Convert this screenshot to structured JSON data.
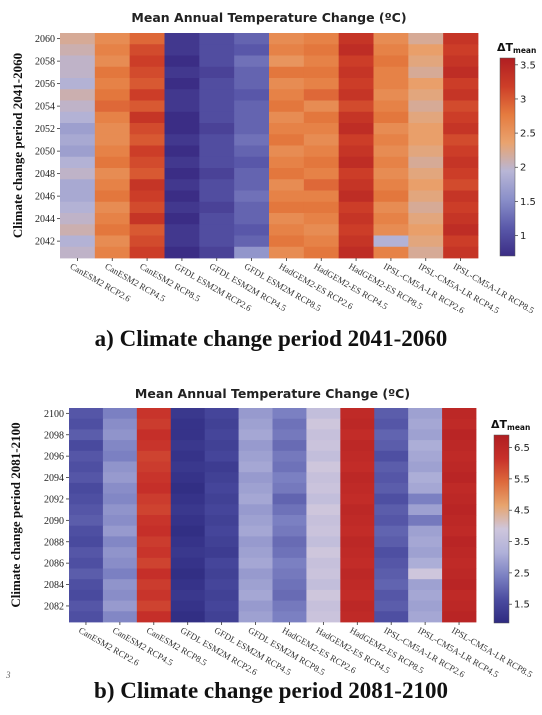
{
  "page": {
    "caption_a": "a) Climate change period 2041-2060",
    "caption_b": "b) Climate change period 2081-2100",
    "page_mark": "3"
  },
  "chart_data": [
    {
      "type": "heatmap",
      "title": "Mean Annual Temperature Change (ºC)",
      "ylabel": "Climate change period 2041-2060",
      "legend_title": "ΔT",
      "legend_title_sub": "mean",
      "legend_ticks": [
        1,
        1.5,
        2,
        2.5,
        3,
        3.5
      ],
      "range": [
        0.7,
        3.6
      ],
      "colorscale": [
        "#3b2d85",
        "#5a59aa",
        "#8a8fc9",
        "#b8b6d6",
        "#e9a36f",
        "#e57b3f",
        "#cd3e28",
        "#b01e22"
      ],
      "x": [
        "CanESM2 RCP2.6",
        "CanESM2 RCP4.5",
        "CanESM2 RCP8.5",
        "GFDL ESM2M RCP2.6",
        "GFDL ESM2M RCP4.5",
        "GFDL ESM2M RCP8.5",
        "HadGEM2-ES RCP2.6",
        "HadGEM2-ES RCP4.5",
        "HadGEM2-ES RCP8.5",
        "IPSL-CM5A-LR RCP2.6",
        "IPSL-CM5A-LR RCP4.5",
        "IPSL-CM5A-LR RCP8.5"
      ],
      "years": [
        2060,
        2059,
        2058,
        2057,
        2056,
        2055,
        2054,
        2053,
        2052,
        2051,
        2050,
        2049,
        2048,
        2047,
        2046,
        2045,
        2044,
        2043,
        2042,
        2041
      ],
      "ytick_labels": [
        "2060",
        "2058",
        "2056",
        "2054",
        "2052",
        "2050",
        "2048",
        "2046",
        "2044",
        "2042"
      ],
      "values": [
        [
          2.2,
          2.6,
          2.9,
          0.8,
          1.0,
          1.2,
          2.6,
          2.7,
          3.3,
          2.6,
          2.2,
          3.3
        ],
        [
          2.1,
          2.7,
          3.1,
          0.8,
          1.0,
          1.1,
          2.7,
          2.8,
          3.4,
          2.7,
          2.4,
          3.2
        ],
        [
          2.0,
          2.6,
          3.2,
          0.7,
          1.0,
          1.3,
          2.5,
          2.7,
          3.2,
          2.8,
          2.3,
          3.3
        ],
        [
          2.0,
          2.8,
          3.1,
          0.8,
          0.9,
          1.2,
          2.8,
          2.8,
          3.3,
          2.7,
          2.2,
          3.4
        ],
        [
          1.9,
          2.7,
          3.0,
          0.7,
          1.0,
          1.2,
          2.6,
          2.7,
          3.2,
          2.7,
          2.4,
          3.2
        ],
        [
          2.1,
          2.8,
          3.2,
          0.8,
          1.0,
          1.1,
          2.7,
          2.9,
          3.3,
          2.6,
          2.3,
          3.3
        ],
        [
          2.0,
          2.9,
          3.0,
          0.8,
          1.0,
          1.2,
          2.8,
          2.6,
          3.1,
          2.7,
          2.2,
          3.1
        ],
        [
          1.9,
          2.7,
          3.3,
          0.7,
          1.0,
          1.2,
          2.6,
          2.8,
          3.3,
          2.8,
          2.3,
          3.2
        ],
        [
          1.7,
          2.6,
          3.1,
          0.7,
          0.9,
          1.2,
          2.7,
          2.7,
          3.4,
          2.6,
          2.4,
          3.3
        ],
        [
          1.8,
          2.6,
          3.0,
          0.8,
          1.0,
          1.3,
          2.8,
          2.6,
          3.2,
          2.7,
          2.4,
          3.1
        ],
        [
          1.7,
          2.7,
          3.2,
          0.7,
          1.0,
          1.2,
          2.6,
          2.7,
          3.3,
          2.6,
          2.3,
          3.2
        ],
        [
          1.9,
          2.8,
          3.1,
          0.8,
          1.0,
          1.1,
          2.7,
          2.8,
          3.4,
          2.7,
          2.2,
          3.3
        ],
        [
          2.0,
          2.6,
          3.0,
          0.7,
          0.9,
          1.2,
          2.8,
          2.7,
          3.2,
          2.6,
          2.3,
          3.2
        ],
        [
          1.8,
          2.7,
          3.3,
          0.8,
          1.0,
          1.2,
          2.6,
          2.9,
          3.3,
          2.7,
          2.4,
          3.1
        ],
        [
          1.8,
          2.8,
          3.2,
          0.7,
          1.0,
          1.3,
          2.7,
          2.7,
          3.4,
          2.8,
          2.3,
          3.3
        ],
        [
          1.9,
          2.6,
          3.1,
          0.8,
          0.9,
          1.2,
          2.8,
          2.8,
          3.2,
          2.6,
          2.2,
          3.2
        ],
        [
          2.0,
          2.7,
          3.3,
          0.7,
          1.0,
          1.2,
          2.6,
          2.7,
          3.3,
          2.7,
          2.3,
          3.3
        ],
        [
          2.1,
          2.8,
          3.0,
          0.8,
          1.0,
          1.1,
          2.7,
          2.6,
          3.2,
          2.6,
          2.4,
          3.4
        ],
        [
          1.9,
          2.6,
          3.1,
          0.8,
          1.0,
          1.2,
          2.8,
          2.7,
          3.3,
          1.9,
          2.3,
          3.2
        ],
        [
          2.0,
          2.7,
          3.2,
          0.7,
          0.9,
          1.6,
          2.6,
          2.8,
          3.4,
          2.7,
          2.2,
          3.3
        ]
      ]
    },
    {
      "type": "heatmap",
      "title": "Mean Annual Temperature Change (ºC)",
      "ylabel": "Climate change period 2081-2100",
      "legend_title": "ΔT",
      "legend_title_sub": "mean",
      "legend_ticks": [
        1.5,
        2.5,
        3.5,
        4.5,
        5.5,
        6.5
      ],
      "range": [
        0.9,
        6.9
      ],
      "colorscale": [
        "#2e2a80",
        "#4b4ca0",
        "#7b80c2",
        "#b0b1d9",
        "#cec6dc",
        "#e7a46e",
        "#dd6a3c",
        "#c7302a",
        "#b01e22"
      ],
      "x": [
        "CanESM2 RCP2.6",
        "CanESM2 RCP4.5",
        "CanESM2 RCP8.5",
        "GFDL ESM2M RCP2.6",
        "GFDL ESM2M RCP4.5",
        "GFDL ESM2M RCP8.5",
        "HadGEM2-ES RCP2.6",
        "HadGEM2-ES RCP4.5",
        "HadGEM2-ES RCP8.5",
        "IPSL-CM5A-LR RCP2.6",
        "IPSL-CM5A-LR RCP4.5",
        "IPSL-CM5A-LR RCP8.5"
      ],
      "years": [
        2100,
        2099,
        2098,
        2097,
        2096,
        2095,
        2094,
        2093,
        2092,
        2091,
        2090,
        2089,
        2088,
        2087,
        2086,
        2085,
        2084,
        2083,
        2082,
        2081
      ],
      "ytick_labels": [
        "2100",
        "2098",
        "2096",
        "2094",
        "2092",
        "2090",
        "2088",
        "2086",
        "2084",
        "2082"
      ],
      "values": [
        [
          1.8,
          2.4,
          6.1,
          1.2,
          1.5,
          2.8,
          2.4,
          3.6,
          6.4,
          1.9,
          2.9,
          6.5
        ],
        [
          1.7,
          2.6,
          6.0,
          1.1,
          1.4,
          2.9,
          2.2,
          3.9,
          6.5,
          1.8,
          3.0,
          6.4
        ],
        [
          1.9,
          2.7,
          6.2,
          1.1,
          1.5,
          3.0,
          2.3,
          3.7,
          6.3,
          2.0,
          2.9,
          6.6
        ],
        [
          1.6,
          2.5,
          6.1,
          1.2,
          1.4,
          2.8,
          2.1,
          3.8,
          6.5,
          1.9,
          3.1,
          6.5
        ],
        [
          1.8,
          2.4,
          5.9,
          1.1,
          1.5,
          2.9,
          2.3,
          3.6,
          6.4,
          1.7,
          3.0,
          6.4
        ],
        [
          1.7,
          2.7,
          6.0,
          1.2,
          1.3,
          3.0,
          2.2,
          3.9,
          6.3,
          1.9,
          2.9,
          6.5
        ],
        [
          1.8,
          2.8,
          6.1,
          1.1,
          1.4,
          2.8,
          2.4,
          3.7,
          6.5,
          1.8,
          3.1,
          6.6
        ],
        [
          1.6,
          2.6,
          6.2,
          1.0,
          1.5,
          2.9,
          2.3,
          3.8,
          6.4,
          1.9,
          3.0,
          6.4
        ],
        [
          1.7,
          2.5,
          6.0,
          1.1,
          1.4,
          3.0,
          2.0,
          3.6,
          6.3,
          1.7,
          2.4,
          6.5
        ],
        [
          1.8,
          2.7,
          5.9,
          1.2,
          1.5,
          2.8,
          2.2,
          3.9,
          6.5,
          1.9,
          2.9,
          6.6
        ],
        [
          1.9,
          2.6,
          6.1,
          1.1,
          1.4,
          2.9,
          2.4,
          3.7,
          6.4,
          1.8,
          2.3,
          6.5
        ],
        [
          1.7,
          2.8,
          6.2,
          1.0,
          1.5,
          3.0,
          2.3,
          3.8,
          6.3,
          2.0,
          2.9,
          6.4
        ],
        [
          1.6,
          2.5,
          6.0,
          1.1,
          1.4,
          2.8,
          2.1,
          3.6,
          6.5,
          1.9,
          3.0,
          6.6
        ],
        [
          1.8,
          2.7,
          6.1,
          1.2,
          1.3,
          2.9,
          2.2,
          3.9,
          6.4,
          1.7,
          2.9,
          6.5
        ],
        [
          1.7,
          2.6,
          5.9,
          1.1,
          1.5,
          3.0,
          2.4,
          3.7,
          6.3,
          1.8,
          3.1,
          6.4
        ],
        [
          1.9,
          2.4,
          6.2,
          1.0,
          1.4,
          2.8,
          2.3,
          3.8,
          6.5,
          1.9,
          3.9,
          6.5
        ],
        [
          1.7,
          2.7,
          6.0,
          1.1,
          1.5,
          2.9,
          2.2,
          3.6,
          6.4,
          2.0,
          2.9,
          6.6
        ],
        [
          1.6,
          2.6,
          6.1,
          1.2,
          1.4,
          3.0,
          2.1,
          3.9,
          6.3,
          1.8,
          3.0,
          6.4
        ],
        [
          1.8,
          2.8,
          5.9,
          1.1,
          1.5,
          2.8,
          2.3,
          3.7,
          6.5,
          1.9,
          2.9,
          6.5
        ],
        [
          1.7,
          2.5,
          6.2,
          1.0,
          1.4,
          2.9,
          2.4,
          3.8,
          6.4,
          1.7,
          3.0,
          6.6
        ]
      ]
    }
  ]
}
